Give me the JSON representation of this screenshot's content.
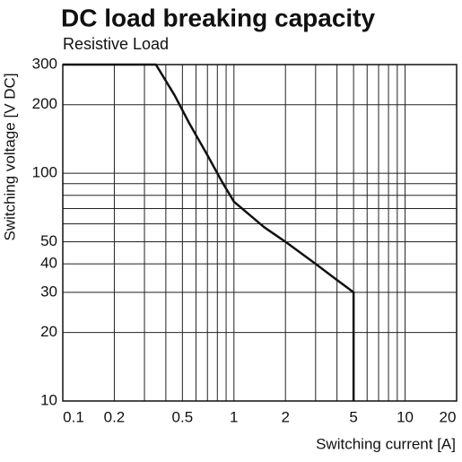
{
  "chart_data": {
    "type": "line",
    "title": "DC load breaking capacity",
    "subtitle": "Resistive Load",
    "x_label": "Switching current [A]",
    "y_label": "Switching voltage [V DC]",
    "log_x": true,
    "log_y": true,
    "grid": true,
    "x": [
      0.1,
      0.35,
      0.45,
      0.55,
      0.7,
      0.85,
      1,
      1.5,
      2,
      3,
      4,
      5,
      5
    ],
    "series": [
      {
        "color": "#111111",
        "values": [
          300,
          300,
          220,
          165,
          120,
          92,
          75,
          58,
          50,
          40,
          34,
          30,
          10
        ]
      }
    ],
    "xlim": [
      0.1,
      20
    ],
    "ylim": [
      10,
      300
    ],
    "xticks": [
      0.1,
      0.2,
      0.5,
      1,
      2,
      5,
      10,
      20
    ],
    "xminor": [
      0.3,
      0.4,
      0.6,
      0.7,
      0.8,
      0.9,
      3,
      4,
      6,
      7,
      8,
      9
    ],
    "yticks": [
      10,
      20,
      30,
      40,
      50,
      100,
      200,
      300
    ],
    "yminor": [
      60,
      70,
      80,
      90
    ]
  }
}
